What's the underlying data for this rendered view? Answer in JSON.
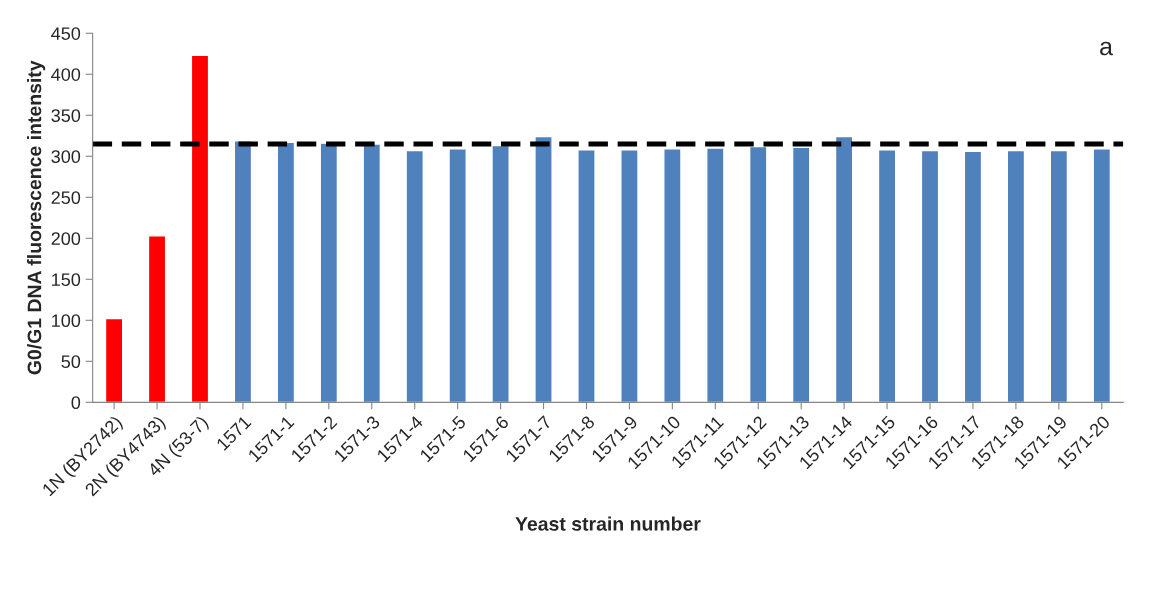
{
  "chart_data": {
    "type": "bar",
    "xlabel": "Yeast strain number",
    "ylabel": "G0/G1 DNA fluorescence intensity",
    "categories": [
      "1N (BY2742)",
      "2N (BY4743)",
      "4N (53-7)",
      "1571",
      "1571-1",
      "1571-2",
      "1571-3",
      "1571-4",
      "1571-5",
      "1571-6",
      "1571-7",
      "1571-8",
      "1571-9",
      "1571-10",
      "1571-11",
      "1571-12",
      "1571-13",
      "1571-14",
      "1571-15",
      "1571-16",
      "1571-17",
      "1571-18",
      "1571-19",
      "1571-20"
    ],
    "values": [
      102,
      203,
      423,
      319,
      317,
      316,
      315,
      307,
      309,
      313,
      324,
      308,
      308,
      309,
      310,
      312,
      311,
      324,
      308,
      307,
      306,
      307,
      307,
      309
    ],
    "colors": [
      "#ff0000",
      "#ff0000",
      "#ff0000",
      "#4f81bd",
      "#4f81bd",
      "#4f81bd",
      "#4f81bd",
      "#4f81bd",
      "#4f81bd",
      "#4f81bd",
      "#4f81bd",
      "#4f81bd",
      "#4f81bd",
      "#4f81bd",
      "#4f81bd",
      "#4f81bd",
      "#4f81bd",
      "#4f81bd",
      "#4f81bd",
      "#4f81bd",
      "#4f81bd",
      "#4f81bd",
      "#4f81bd",
      "#4f81bd"
    ],
    "ylim": [
      0,
      450
    ],
    "yticks": [
      0,
      50,
      100,
      150,
      200,
      250,
      300,
      350,
      400,
      450
    ],
    "grid": false,
    "legend": false,
    "ref_lines": [
      {
        "axis": "y",
        "value": 315,
        "color": "#000000",
        "line_style": "dashed"
      }
    ],
    "annotations": [
      "a"
    ]
  }
}
